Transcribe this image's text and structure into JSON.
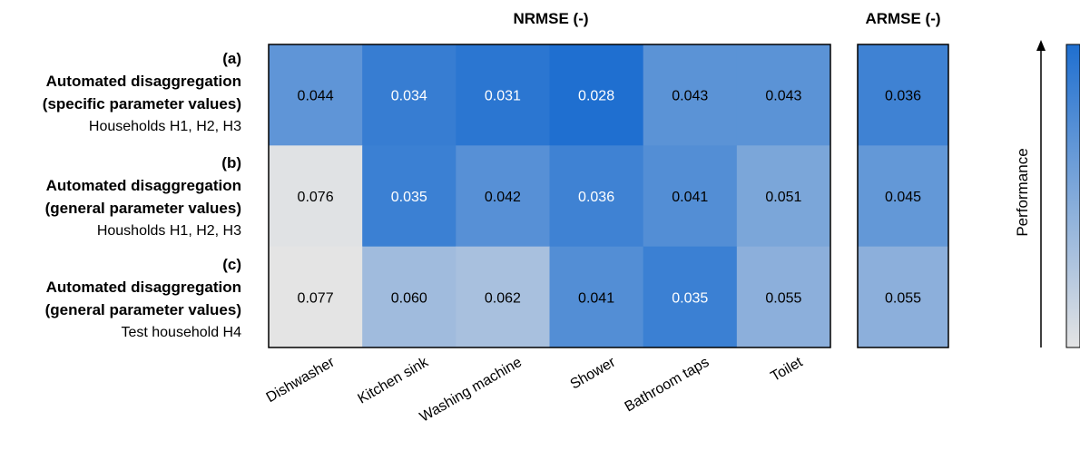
{
  "chart_data": {
    "type": "heatmap",
    "title_left": "NRMSE (-)",
    "title_right": "ARMSE (-)",
    "categories": [
      "Dishwasher",
      "Kitchen sink",
      "Washing machine",
      "Shower",
      "Bathroom taps",
      "Toilet"
    ],
    "rows": [
      {
        "tag": "(a)",
        "line1": "Automated disaggregation",
        "line2": "(specific parameter values)",
        "line3": "Households H1, H2, H3",
        "values": [
          0.044,
          0.034,
          0.031,
          0.028,
          0.043,
          0.043
        ],
        "armse": 0.036
      },
      {
        "tag": "(b)",
        "line1": "Automated disaggregation",
        "line2": "(general parameter values)",
        "line3": "Housholds H1, H2, H3",
        "values": [
          0.076,
          0.035,
          0.042,
          0.036,
          0.041,
          0.051
        ],
        "armse": 0.045
      },
      {
        "tag": "(c)",
        "line1": "Automated disaggregation",
        "line2": "(general parameter values)",
        "line3": "Test household H4",
        "values": [
          0.077,
          0.06,
          0.062,
          0.041,
          0.035,
          0.055
        ],
        "armse": 0.055
      }
    ],
    "color_scale": {
      "low_error_color": "#1f6fd0",
      "high_error_color": "#e4e4e4",
      "label": "Performance"
    }
  }
}
